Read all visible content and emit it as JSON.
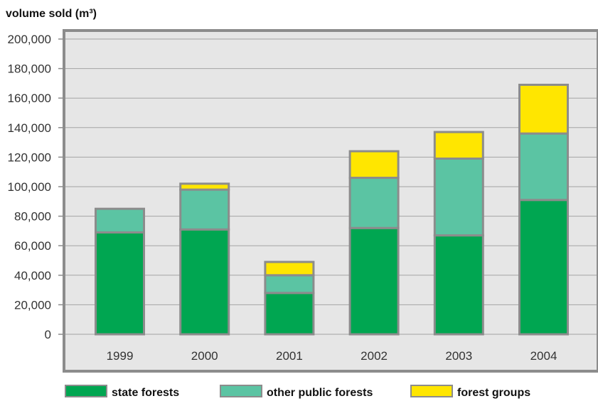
{
  "chart_data": {
    "type": "bar",
    "stacked": true,
    "ylabel": "volume sold (m³)",
    "xlabel": "",
    "ylim": [
      0,
      200000
    ],
    "yticks": [
      0,
      20000,
      40000,
      60000,
      80000,
      100000,
      120000,
      140000,
      160000,
      180000,
      200000
    ],
    "ytick_labels": [
      "0",
      "20,000",
      "40,000",
      "60,000",
      "80,000",
      "100,000",
      "120,000",
      "140,000",
      "160,000",
      "180,000",
      "200,000"
    ],
    "grid": true,
    "legend_position": "bottom",
    "categories": [
      "1999",
      "2000",
      "2001",
      "2002",
      "2003",
      "2004"
    ],
    "series": [
      {
        "name": "state forests",
        "color": "#00a651",
        "values": [
          69000,
          71000,
          28000,
          72000,
          67000,
          91000
        ]
      },
      {
        "name": "other public forests",
        "color": "#5bc4a3",
        "values": [
          16000,
          27000,
          12000,
          34000,
          52000,
          45000
        ]
      },
      {
        "name": "forest groups",
        "color": "#ffe600",
        "values": [
          0,
          4000,
          9000,
          18000,
          18000,
          33000
        ]
      }
    ]
  }
}
